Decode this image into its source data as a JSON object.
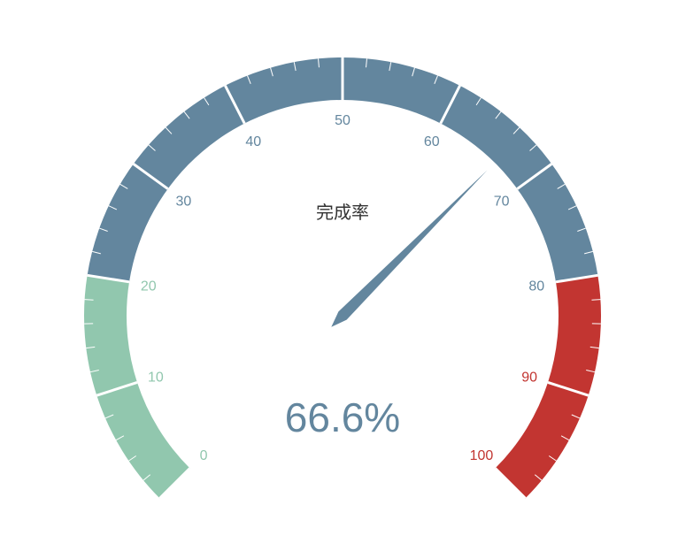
{
  "chart_data": {
    "type": "gauge",
    "title": "完成率",
    "value": 66.6,
    "value_label": "66.6%",
    "min": 0,
    "max": 100,
    "major_ticks": [
      0,
      10,
      20,
      30,
      40,
      50,
      60,
      70,
      80,
      90,
      100
    ],
    "tick_labels": [
      "0",
      "10",
      "20",
      "30",
      "40",
      "50",
      "60",
      "70",
      "80",
      "90",
      "100"
    ],
    "bands": [
      {
        "from": 0,
        "to": 20,
        "color": "#91c7ae"
      },
      {
        "from": 20,
        "to": 80,
        "color": "#63869e"
      },
      {
        "from": 80,
        "to": 100,
        "color": "#c23531"
      }
    ],
    "pointer_color": "#63869e",
    "value_color": "#63869e"
  }
}
